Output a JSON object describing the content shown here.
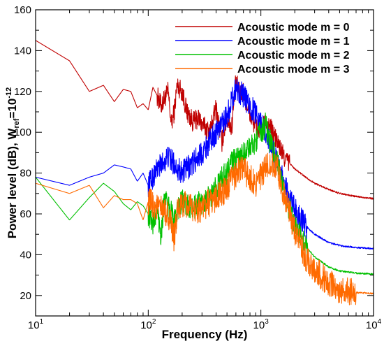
{
  "chart_data": {
    "type": "line",
    "title": "",
    "xlabel": "Frequency (Hz)",
    "ylabel": "Power level (dB), W",
    "ylabel_ref": "ref",
    "ylabel_tail": "=10",
    "ylabel_exp": "-12",
    "xscale": "log",
    "xlim": [
      10,
      10000
    ],
    "ylim": [
      10,
      160
    ],
    "grid": false,
    "legend_position": "top-right",
    "x_ticks": [
      {
        "value": 10,
        "base": "10",
        "exp": "1"
      },
      {
        "value": 100,
        "base": "10",
        "exp": "2"
      },
      {
        "value": 1000,
        "base": "10",
        "exp": "3"
      },
      {
        "value": 10000,
        "base": "10",
        "exp": "4"
      }
    ],
    "y_ticks": [
      {
        "value": 20,
        "label": "20"
      },
      {
        "value": 40,
        "label": "40"
      },
      {
        "value": 60,
        "label": "60"
      },
      {
        "value": 80,
        "label": "80"
      },
      {
        "value": 100,
        "label": "100"
      },
      {
        "value": 120,
        "label": "120"
      },
      {
        "value": 140,
        "label": "140"
      },
      {
        "value": 160,
        "label": "160"
      }
    ],
    "series": [
      {
        "name": "Acoustic mode m = 0",
        "color": "#c00000",
        "points": [
          [
            10,
            145
          ],
          [
            20,
            135
          ],
          [
            30,
            120
          ],
          [
            40,
            123
          ],
          [
            50,
            115
          ],
          [
            60,
            121
          ],
          [
            70,
            120
          ],
          [
            80,
            112
          ],
          [
            90,
            114
          ],
          [
            100,
            111
          ],
          [
            110,
            122
          ],
          [
            120,
            118
          ],
          [
            130,
            113
          ],
          [
            150,
            120
          ],
          [
            160,
            104
          ],
          [
            170,
            110
          ],
          [
            180,
            123
          ],
          [
            200,
            120
          ],
          [
            220,
            110
          ],
          [
            250,
            105
          ],
          [
            280,
            107
          ],
          [
            300,
            104
          ],
          [
            350,
            100
          ],
          [
            400,
            112
          ],
          [
            450,
            95
          ],
          [
            500,
            107
          ],
          [
            550,
            102
          ],
          [
            600,
            125
          ],
          [
            650,
            119
          ],
          [
            700,
            120
          ],
          [
            800,
            108
          ],
          [
            900,
            103
          ],
          [
            1000,
            100
          ],
          [
            1100,
            105
          ],
          [
            1200,
            103
          ],
          [
            1400,
            95
          ],
          [
            1600,
            88
          ],
          [
            2000,
            82
          ],
          [
            2500,
            78
          ],
          [
            3000,
            75
          ],
          [
            4000,
            72
          ],
          [
            5000,
            70
          ],
          [
            7000,
            68.5
          ],
          [
            10000,
            67.5
          ]
        ],
        "noise": 5,
        "noise_x_min": 120,
        "noise_x_max": 1800
      },
      {
        "name": "Acoustic mode m = 1",
        "color": "#0000ff",
        "points": [
          [
            10,
            78
          ],
          [
            20,
            74
          ],
          [
            30,
            78
          ],
          [
            40,
            80
          ],
          [
            50,
            84
          ],
          [
            60,
            83
          ],
          [
            70,
            82
          ],
          [
            80,
            76
          ],
          [
            90,
            80
          ],
          [
            100,
            74
          ],
          [
            120,
            82
          ],
          [
            150,
            88
          ],
          [
            200,
            80
          ],
          [
            250,
            85
          ],
          [
            300,
            90
          ],
          [
            400,
            100
          ],
          [
            500,
            108
          ],
          [
            600,
            122
          ],
          [
            700,
            118
          ],
          [
            800,
            112
          ],
          [
            900,
            110
          ],
          [
            1000,
            105
          ],
          [
            1100,
            100
          ],
          [
            1200,
            95
          ],
          [
            1400,
            85
          ],
          [
            1600,
            75
          ],
          [
            2000,
            62
          ],
          [
            2500,
            54
          ],
          [
            3000,
            50
          ],
          [
            4000,
            46
          ],
          [
            5000,
            44.5
          ],
          [
            7000,
            43.5
          ],
          [
            10000,
            43
          ]
        ],
        "noise": 6,
        "noise_x_min": 100,
        "noise_x_max": 2600
      },
      {
        "name": "Acoustic mode m = 2",
        "color": "#00c000",
        "points": [
          [
            10,
            78
          ],
          [
            20,
            57
          ],
          [
            30,
            68
          ],
          [
            40,
            75
          ],
          [
            50,
            71
          ],
          [
            60,
            65
          ],
          [
            70,
            62
          ],
          [
            80,
            66
          ],
          [
            90,
            64
          ],
          [
            100,
            60
          ],
          [
            110,
            55
          ],
          [
            120,
            62
          ],
          [
            130,
            50
          ],
          [
            140,
            70
          ],
          [
            150,
            63
          ],
          [
            170,
            58
          ],
          [
            180,
            62
          ],
          [
            200,
            66
          ],
          [
            220,
            64
          ],
          [
            250,
            62
          ],
          [
            280,
            66
          ],
          [
            300,
            65
          ],
          [
            350,
            68
          ],
          [
            400,
            73
          ],
          [
            450,
            78
          ],
          [
            500,
            80
          ],
          [
            550,
            86
          ],
          [
            600,
            86
          ],
          [
            700,
            90
          ],
          [
            800,
            92
          ],
          [
            900,
            96
          ],
          [
            1000,
            100
          ],
          [
            1100,
            104
          ],
          [
            1200,
            96
          ],
          [
            1400,
            85
          ],
          [
            1600,
            70
          ],
          [
            2000,
            55
          ],
          [
            2500,
            44
          ],
          [
            3000,
            39
          ],
          [
            4000,
            34
          ],
          [
            5000,
            32
          ],
          [
            7000,
            31
          ],
          [
            10000,
            30.5
          ]
        ],
        "noise": 6,
        "noise_x_min": 100,
        "noise_x_max": 2600
      },
      {
        "name": "Acoustic mode m = 3",
        "color": "#ff6a00",
        "points": [
          [
            10,
            75
          ],
          [
            20,
            70
          ],
          [
            30,
            74
          ],
          [
            40,
            63
          ],
          [
            50,
            69
          ],
          [
            60,
            67
          ],
          [
            70,
            67
          ],
          [
            80,
            65
          ],
          [
            90,
            57
          ],
          [
            100,
            66
          ],
          [
            120,
            63
          ],
          [
            150,
            60
          ],
          [
            170,
            48
          ],
          [
            180,
            60
          ],
          [
            200,
            65
          ],
          [
            250,
            62
          ],
          [
            300,
            63
          ],
          [
            400,
            68
          ],
          [
            500,
            72
          ],
          [
            600,
            80
          ],
          [
            700,
            82
          ],
          [
            800,
            78
          ],
          [
            900,
            75
          ],
          [
            1000,
            78
          ],
          [
            1100,
            82
          ],
          [
            1200,
            85
          ],
          [
            1400,
            82
          ],
          [
            1600,
            70
          ],
          [
            2000,
            52
          ],
          [
            2500,
            38
          ],
          [
            3000,
            33
          ],
          [
            4000,
            26
          ],
          [
            5000,
            23
          ],
          [
            7000,
            21.5
          ],
          [
            10000,
            21
          ]
        ],
        "noise": 7,
        "noise_x_min": 100,
        "noise_x_max": 7000
      }
    ]
  }
}
